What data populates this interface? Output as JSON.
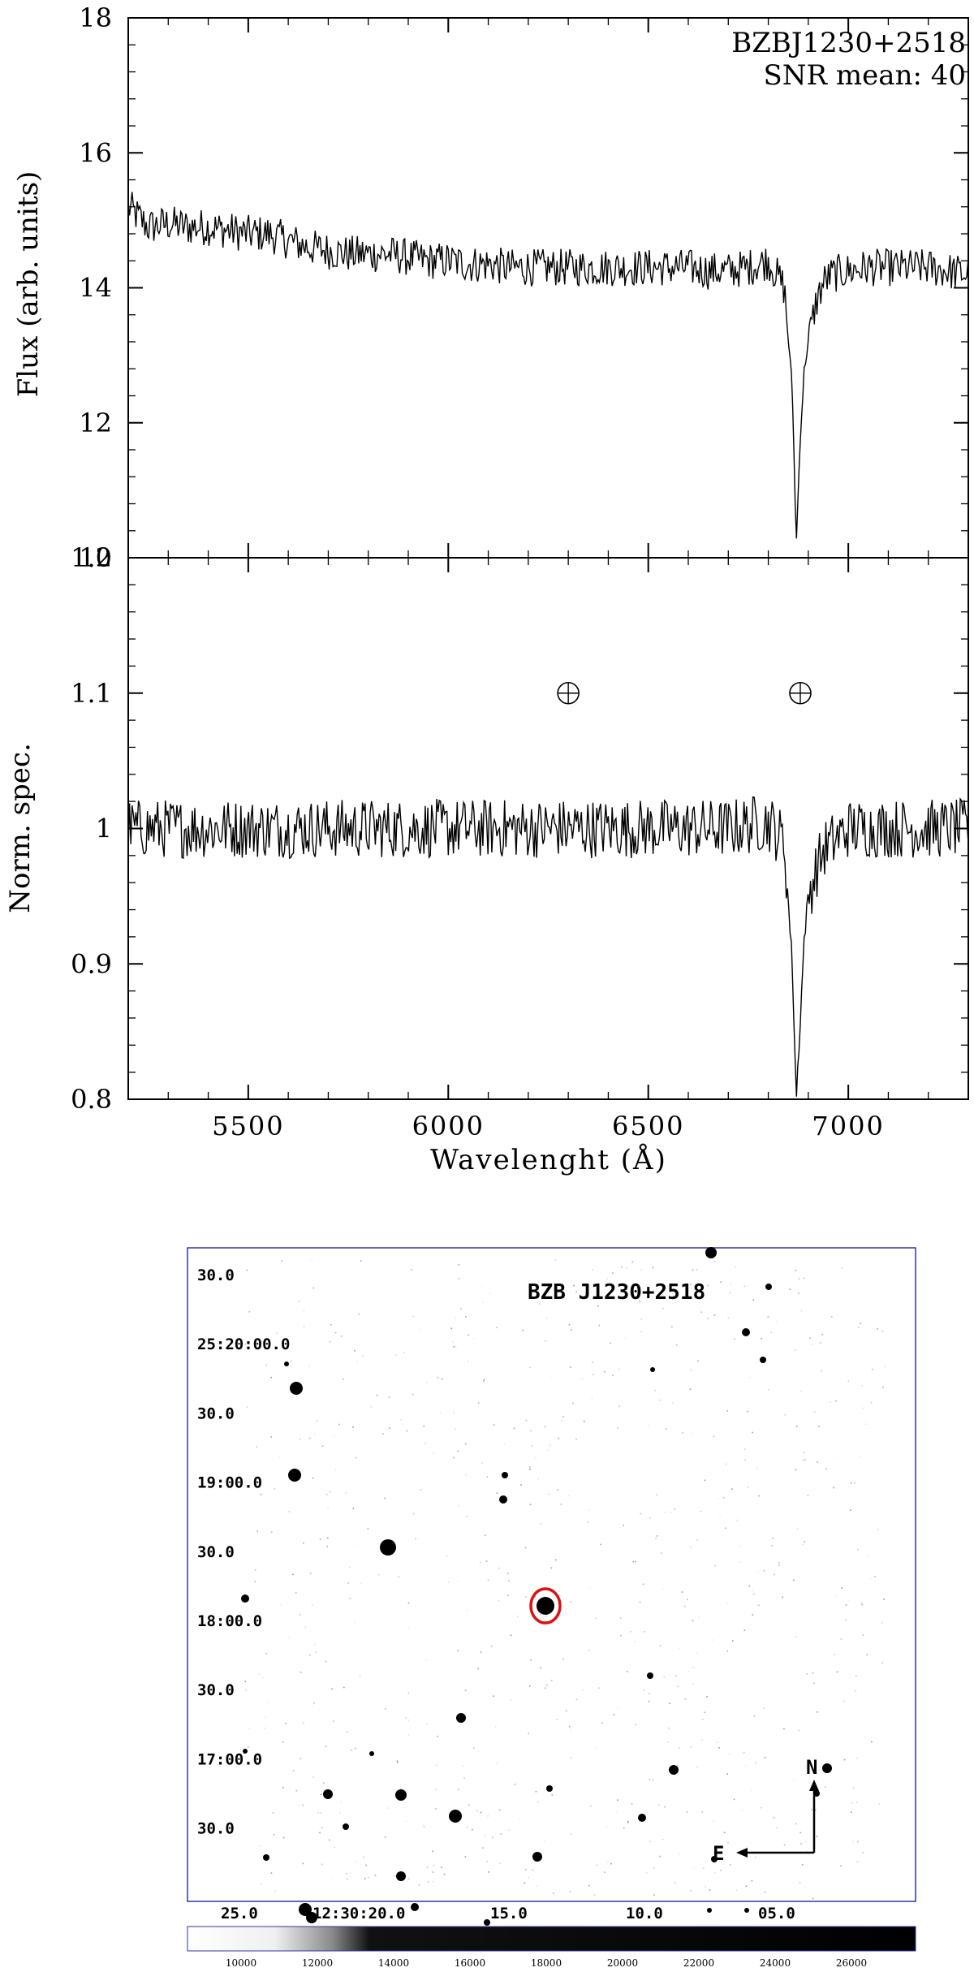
{
  "chart_data": [
    {
      "type": "line",
      "panel": "top",
      "title": "BZBJ1230+2518",
      "annotation": "SNR mean: 40",
      "ylabel": "Flux (arb. units)",
      "xlim": [
        5200,
        7300
      ],
      "ylim": [
        10,
        18
      ],
      "yticks": [
        10,
        12,
        14,
        16,
        18
      ],
      "ytick_labels": [
        "10",
        "12",
        "14",
        "16",
        "18"
      ],
      "series": [
        {
          "x": [
            5200,
            5250,
            5300,
            5350,
            5400,
            5450,
            5500,
            5550,
            5600,
            5650,
            5700,
            5750,
            5800,
            5850,
            5900,
            5950,
            6000,
            6050,
            6100,
            6150,
            6200,
            6250,
            6300,
            6350,
            6400,
            6450,
            6500,
            6550,
            6600,
            6650,
            6700,
            6750,
            6800,
            6840,
            6860,
            6870,
            6880,
            6890,
            6900,
            6920,
            6940,
            6960,
            7000,
            7050,
            7100,
            7150,
            7200,
            7250,
            7300
          ],
          "y": [
            15.2,
            14.9,
            14.95,
            14.9,
            14.9,
            14.85,
            14.8,
            14.8,
            14.7,
            14.6,
            14.55,
            14.5,
            14.5,
            14.5,
            14.45,
            14.4,
            14.4,
            14.35,
            14.35,
            14.3,
            14.3,
            14.3,
            14.3,
            14.3,
            14.3,
            14.3,
            14.3,
            14.3,
            14.3,
            14.25,
            14.25,
            14.3,
            14.4,
            14.0,
            12.5,
            10.2,
            11.8,
            12.8,
            13.2,
            13.8,
            14.1,
            14.2,
            14.25,
            14.3,
            14.3,
            14.3,
            14.3,
            14.25,
            14.2
          ]
        }
      ]
    },
    {
      "type": "line",
      "panel": "bottom",
      "xlabel": "Wavelenght (Å)",
      "ylabel": "Norm. spec.",
      "xlim": [
        5200,
        7300
      ],
      "ylim": [
        0.8,
        1.2
      ],
      "xticks": [
        5500,
        6000,
        6500,
        7000
      ],
      "xtick_labels": [
        "5500",
        "6000",
        "6500",
        "7000"
      ],
      "yticks": [
        0.8,
        0.9,
        1,
        1.1,
        1.2
      ],
      "ytick_labels": [
        "0.8",
        "0.9",
        "1",
        "1.1",
        "1.2"
      ],
      "telluric_markers": [
        6300,
        6880
      ],
      "series": [
        {
          "x": [
            5200,
            5300,
            5400,
            5500,
            5600,
            5700,
            5800,
            5900,
            6000,
            6100,
            6200,
            6300,
            6400,
            6500,
            6600,
            6700,
            6800,
            6840,
            6860,
            6870,
            6880,
            6890,
            6900,
            6920,
            6940,
            6960,
            7000,
            7100,
            7200,
            7300
          ],
          "y": [
            1.0,
            1.0,
            1.0,
            1.0,
            1.0,
            1.0,
            1.0,
            1.0,
            1.0,
            1.0,
            1.0,
            1.0,
            1.0,
            1.0,
            1.0,
            1.0,
            1.005,
            0.99,
            0.9,
            0.8,
            0.86,
            0.92,
            0.95,
            0.97,
            0.985,
            0.99,
            1.0,
            1.0,
            1.0,
            1.0
          ]
        }
      ]
    }
  ],
  "finder": {
    "title": "BZB J1230+2518",
    "dec_labels": [
      "30.0",
      "25:20:00.0",
      "30.0",
      "19:00.0",
      "30.0",
      "18:00.0",
      "30.0",
      "17:00.0",
      "30.0"
    ],
    "ra_labels": [
      "25.0",
      "12:30:20.0",
      "15.0",
      "10.0",
      "05.0"
    ],
    "compass_north": "N",
    "compass_east": "E",
    "colorbar_ticks": [
      "10000",
      "12000",
      "14000",
      "16000",
      "18000",
      "20000",
      "22000",
      "24000",
      "26000"
    ],
    "colors": {
      "frame": "#3333aa",
      "target_circle": "#dd1111"
    }
  }
}
